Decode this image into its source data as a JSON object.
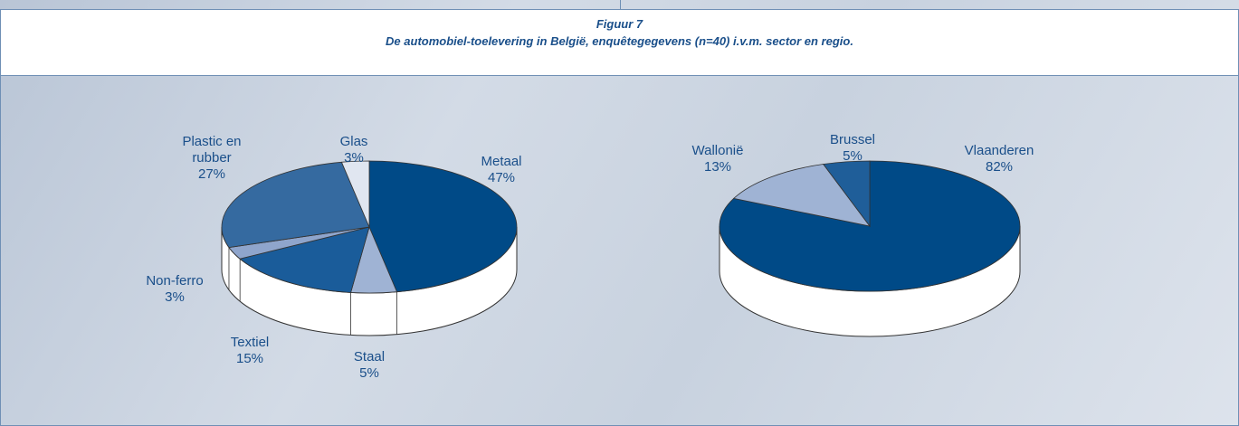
{
  "figure": {
    "label": "Figuur 7",
    "caption": "De automobiel-toelevering in België, enquêtegegevens (n=40) i.v.m. sector en regio."
  },
  "chart_data": [
    {
      "type": "pie",
      "categories": [
        "Metaal",
        "Staal",
        "Textiel",
        "Non-ferro",
        "Plastic en rubber",
        "Glas"
      ],
      "values": [
        47,
        5,
        15,
        3,
        27,
        3
      ],
      "value_labels": [
        "47%",
        "5%",
        "15%",
        "3%",
        "27%",
        "3%"
      ],
      "colors": [
        "#004a87",
        "#9fb3d4",
        "#1a5c9a",
        "#8fa5cc",
        "#356aa0",
        "#e0e6f0"
      ]
    },
    {
      "type": "pie",
      "categories": [
        "Vlaanderen",
        "Wallonië",
        "Brussel"
      ],
      "values": [
        82,
        13,
        5
      ],
      "value_labels": [
        "82%",
        "13%",
        "5%"
      ],
      "colors": [
        "#004a87",
        "#9fb3d4",
        "#1f5e99"
      ]
    }
  ]
}
